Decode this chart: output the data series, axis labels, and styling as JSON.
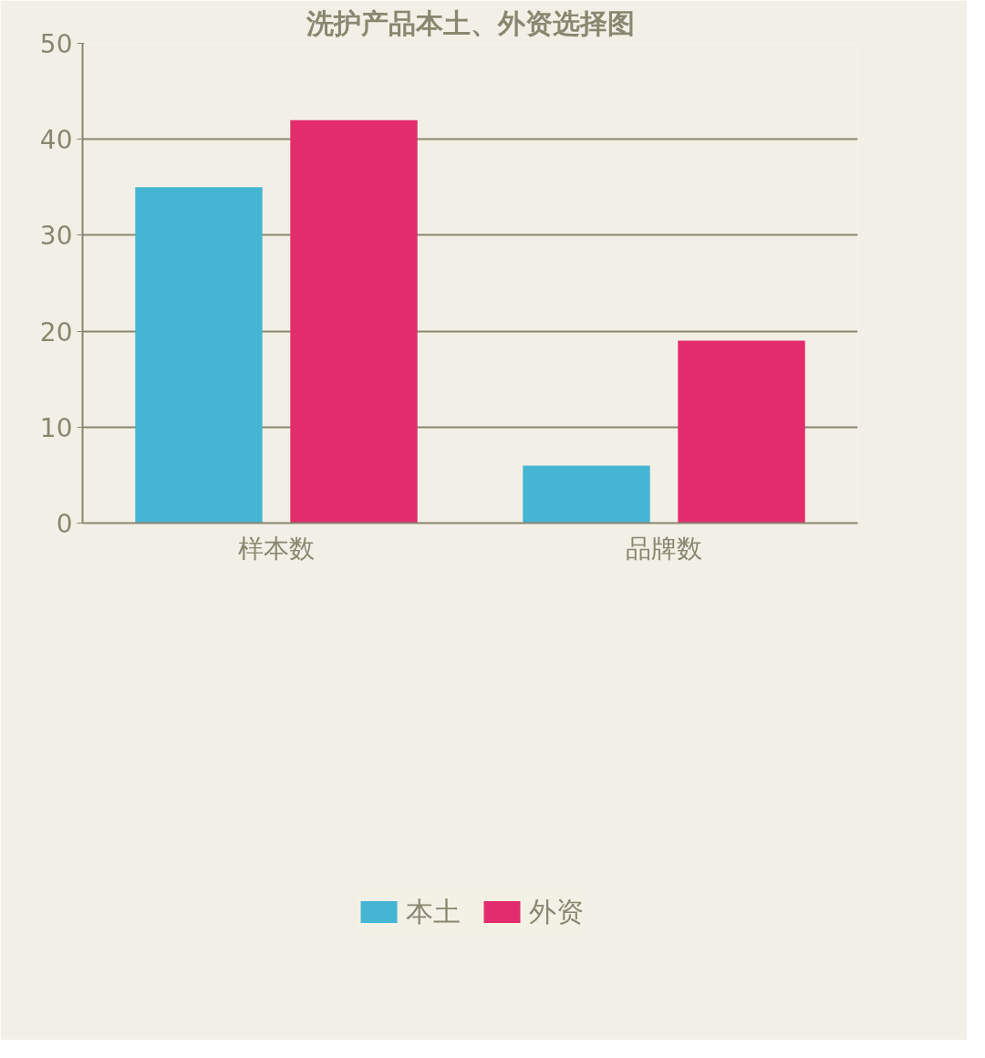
{
  "chart_data": {
    "type": "bar",
    "title": "洗护产品本土、外资选择图",
    "categories": [
      "样本数",
      "品牌数"
    ],
    "series": [
      {
        "name": "本土",
        "color": "#45b5d3",
        "values": [
          35,
          6
        ]
      },
      {
        "name": "外资",
        "color": "#e32c6c",
        "values": [
          42,
          19
        ]
      }
    ],
    "ylim": [
      0,
      50
    ],
    "yticks": [
      0,
      10,
      20,
      30,
      40,
      50
    ],
    "grid": "y",
    "legend": "bottom"
  }
}
